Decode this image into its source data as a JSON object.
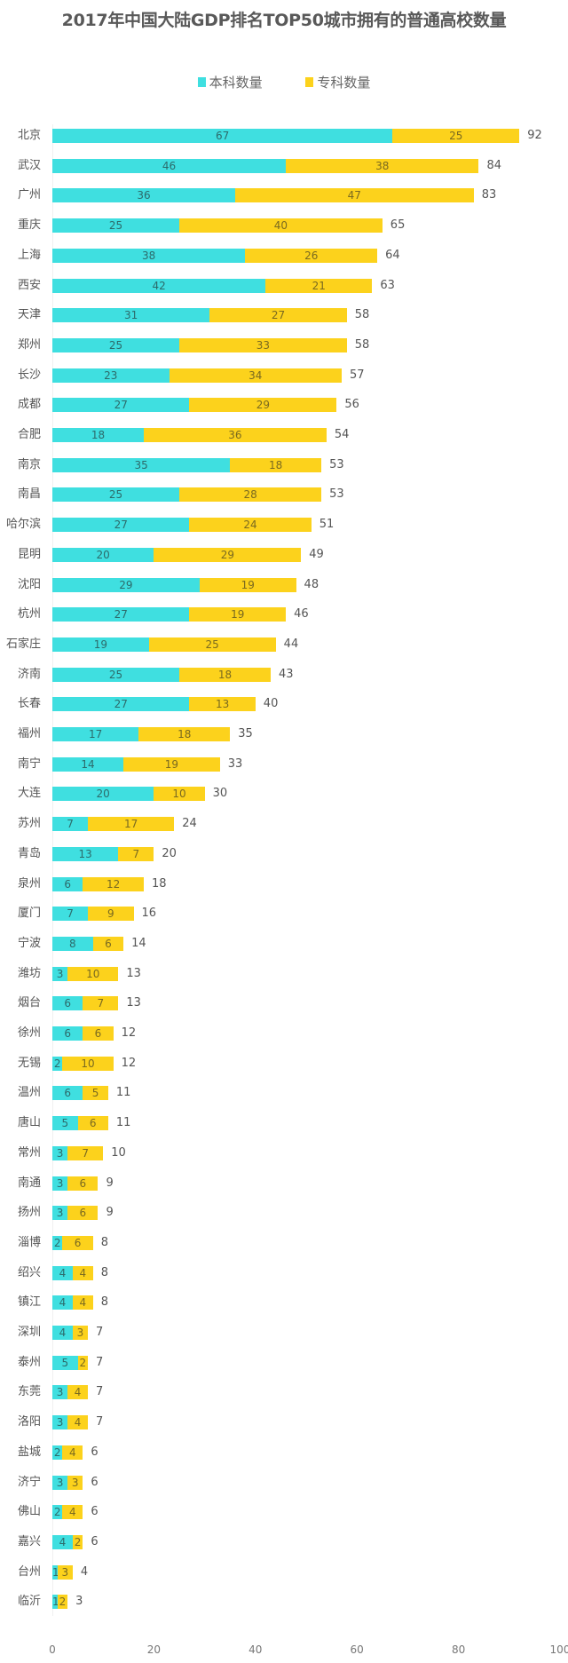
{
  "title": "2017年中国大陆GDP排名TOP50城市拥有的普通高校数量",
  "colors": {
    "undergrad": "#3fdfe0",
    "vocational": "#fcd21c"
  },
  "legend": [
    {
      "label": "本科数量",
      "color": "#3fdfe0"
    },
    {
      "label": "专科数量",
      "color": "#fcd21c"
    }
  ],
  "x_ticks": [
    "0",
    "20",
    "40",
    "60",
    "80",
    "100"
  ],
  "chart_data": {
    "type": "bar",
    "orientation": "horizontal",
    "stacked": true,
    "title": "2017年中国大陆GDP排名TOP50城市拥有的普通高校数量",
    "xlabel": "",
    "ylabel": "",
    "xlim": [
      0,
      100
    ],
    "x_ticks": [
      0,
      20,
      40,
      60,
      80,
      100
    ],
    "grid": false,
    "legend_position": "top",
    "categories": [
      "北京",
      "武汉",
      "广州",
      "重庆",
      "上海",
      "西安",
      "天津",
      "郑州",
      "长沙",
      "成都",
      "合肥",
      "南京",
      "南昌",
      "哈尔滨",
      "昆明",
      "沈阳",
      "杭州",
      "石家庄",
      "济南",
      "长春",
      "福州",
      "南宁",
      "大连",
      "苏州",
      "青岛",
      "泉州",
      "厦门",
      "宁波",
      "潍坊",
      "烟台",
      "徐州",
      "无锡",
      "温州",
      "唐山",
      "常州",
      "南通",
      "扬州",
      "淄博",
      "绍兴",
      "镇江",
      "深圳",
      "泰州",
      "东莞",
      "洛阳",
      "盐城",
      "济宁",
      "佛山",
      "嘉兴",
      "台州",
      "临沂"
    ],
    "series": [
      {
        "name": "本科数量",
        "color": "#3fdfe0",
        "values": [
          67,
          46,
          36,
          25,
          38,
          42,
          31,
          25,
          23,
          27,
          18,
          35,
          25,
          27,
          20,
          29,
          27,
          19,
          25,
          27,
          17,
          14,
          20,
          7,
          13,
          6,
          7,
          8,
          3,
          6,
          6,
          2,
          6,
          5,
          3,
          3,
          3,
          2,
          4,
          4,
          4,
          5,
          3,
          3,
          2,
          3,
          2,
          4,
          1,
          1
        ]
      },
      {
        "name": "专科数量",
        "color": "#fcd21c",
        "values": [
          25,
          38,
          47,
          40,
          26,
          21,
          27,
          33,
          34,
          29,
          36,
          18,
          28,
          24,
          29,
          19,
          19,
          25,
          18,
          13,
          18,
          19,
          10,
          17,
          7,
          12,
          9,
          6,
          10,
          7,
          6,
          10,
          5,
          6,
          7,
          6,
          6,
          6,
          4,
          4,
          3,
          2,
          4,
          4,
          4,
          3,
          4,
          2,
          3,
          2
        ]
      }
    ],
    "totals": [
      92,
      84,
      83,
      65,
      64,
      63,
      58,
      58,
      57,
      56,
      54,
      53,
      53,
      51,
      49,
      48,
      46,
      44,
      43,
      40,
      35,
      33,
      30,
      24,
      20,
      18,
      16,
      14,
      13,
      13,
      12,
      12,
      11,
      11,
      10,
      9,
      9,
      8,
      8,
      8,
      7,
      7,
      7,
      7,
      6,
      6,
      6,
      6,
      4,
      3
    ]
  }
}
